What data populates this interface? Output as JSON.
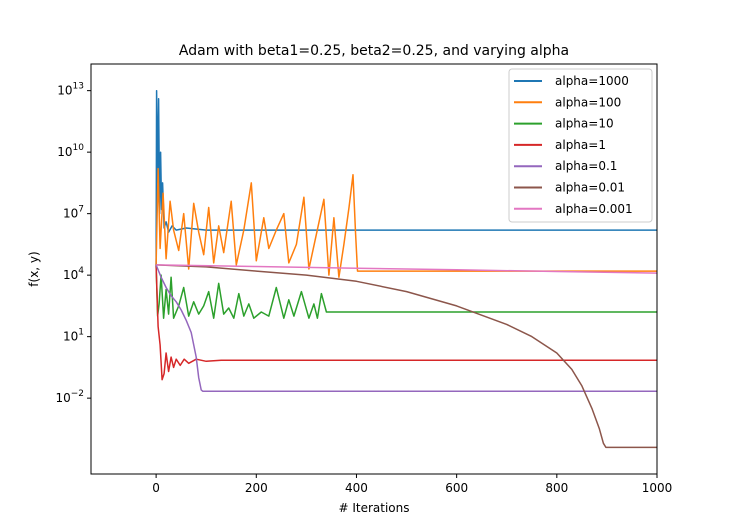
{
  "chart_data": {
    "type": "line",
    "title": "Adam with beta1=0.25, beta2=0.25, and varying alpha",
    "xlabel": "# Iterations",
    "ylabel": "f(x, y)",
    "xlim": [
      -130,
      1000
    ],
    "ylim_log10": [
      -5.7,
      14.3
    ],
    "yscale": "log",
    "grid": false,
    "legend_position": "top-right",
    "x_ticks": [
      {
        "value": 0,
        "label": "0"
      },
      {
        "value": 200,
        "label": "200"
      },
      {
        "value": 400,
        "label": "400"
      },
      {
        "value": 600,
        "label": "600"
      },
      {
        "value": 800,
        "label": "800"
      },
      {
        "value": 1000,
        "label": "1000"
      }
    ],
    "y_ticks": [
      {
        "exp": 13,
        "base": "10",
        "sup": "13"
      },
      {
        "exp": 10,
        "base": "10",
        "sup": "10"
      },
      {
        "exp": 7,
        "base": "10",
        "sup": "7"
      },
      {
        "exp": 4,
        "base": "10",
        "sup": "4"
      },
      {
        "exp": 1,
        "base": "10",
        "sup": "1"
      },
      {
        "exp": -2,
        "base": "10",
        "sup": "−2"
      }
    ],
    "series": [
      {
        "name": "alpha=1000",
        "color": "#1f77b4",
        "log10_points": [
          [
            0,
            4.5
          ],
          [
            1,
            13.0
          ],
          [
            3,
            8.5
          ],
          [
            5,
            12.6
          ],
          [
            7,
            7.0
          ],
          [
            9,
            10.0
          ],
          [
            11,
            7.2
          ],
          [
            13,
            8.5
          ],
          [
            16,
            6.3
          ],
          [
            20,
            6.6
          ],
          [
            25,
            6.1
          ],
          [
            32,
            6.4
          ],
          [
            40,
            6.2
          ],
          [
            60,
            6.3
          ],
          [
            100,
            6.2
          ],
          [
            150,
            6.2
          ],
          [
            1000,
            6.2
          ]
        ]
      },
      {
        "name": "alpha=100",
        "color": "#ff7f0e",
        "log10_points": [
          [
            0,
            4.5
          ],
          [
            4,
            9.2
          ],
          [
            8,
            5.3
          ],
          [
            14,
            8.0
          ],
          [
            20,
            4.8
          ],
          [
            28,
            7.6
          ],
          [
            35,
            6.2
          ],
          [
            45,
            5.2
          ],
          [
            55,
            7.0
          ],
          [
            65,
            4.3
          ],
          [
            75,
            7.5
          ],
          [
            85,
            6.1
          ],
          [
            95,
            5.0
          ],
          [
            105,
            7.3
          ],
          [
            115,
            4.6
          ],
          [
            125,
            6.4
          ],
          [
            135,
            5.1
          ],
          [
            150,
            7.6
          ],
          [
            160,
            4.5
          ],
          [
            175,
            6.2
          ],
          [
            190,
            8.5
          ],
          [
            200,
            4.7
          ],
          [
            215,
            6.8
          ],
          [
            225,
            5.3
          ],
          [
            240,
            6.2
          ],
          [
            255,
            7.0
          ],
          [
            265,
            4.6
          ],
          [
            280,
            5.5
          ],
          [
            295,
            7.8
          ],
          [
            305,
            4.3
          ],
          [
            320,
            6.0
          ],
          [
            335,
            7.7
          ],
          [
            345,
            4.0
          ],
          [
            355,
            6.8
          ],
          [
            365,
            3.9
          ],
          [
            375,
            5.5
          ],
          [
            385,
            7.3
          ],
          [
            393,
            8.9
          ],
          [
            398,
            6.1
          ],
          [
            402,
            4.2
          ],
          [
            1000,
            4.2
          ]
        ]
      },
      {
        "name": "alpha=10",
        "color": "#2ca02c",
        "log10_points": [
          [
            0,
            4.5
          ],
          [
            3,
            2.0
          ],
          [
            6,
            2.6
          ],
          [
            10,
            4.0
          ],
          [
            15,
            1.9
          ],
          [
            20,
            3.3
          ],
          [
            25,
            2.1
          ],
          [
            30,
            3.9
          ],
          [
            35,
            1.9
          ],
          [
            45,
            2.5
          ],
          [
            55,
            3.4
          ],
          [
            65,
            2.0
          ],
          [
            75,
            2.7
          ],
          [
            85,
            2.1
          ],
          [
            95,
            2.5
          ],
          [
            105,
            3.2
          ],
          [
            115,
            1.9
          ],
          [
            125,
            3.6
          ],
          [
            135,
            2.1
          ],
          [
            145,
            2.4
          ],
          [
            155,
            1.9
          ],
          [
            165,
            3.1
          ],
          [
            175,
            2.0
          ],
          [
            185,
            2.6
          ],
          [
            195,
            1.9
          ],
          [
            210,
            2.2
          ],
          [
            225,
            2.0
          ],
          [
            240,
            3.4
          ],
          [
            255,
            1.9
          ],
          [
            265,
            2.8
          ],
          [
            275,
            2.0
          ],
          [
            290,
            3.2
          ],
          [
            305,
            1.9
          ],
          [
            315,
            2.6
          ],
          [
            322,
            1.9
          ],
          [
            330,
            3.1
          ],
          [
            340,
            2.2
          ],
          [
            350,
            2.2
          ],
          [
            1000,
            2.2
          ]
        ]
      },
      {
        "name": "alpha=1",
        "color": "#d62728",
        "log10_points": [
          [
            0,
            4.5
          ],
          [
            4,
            1.5
          ],
          [
            8,
            0.6
          ],
          [
            12,
            -1.1
          ],
          [
            16,
            -0.8
          ],
          [
            20,
            0.2
          ],
          [
            25,
            -0.7
          ],
          [
            30,
            0.0
          ],
          [
            35,
            -0.5
          ],
          [
            40,
            -0.1
          ],
          [
            48,
            -0.4
          ],
          [
            56,
            -0.1
          ],
          [
            65,
            -0.3
          ],
          [
            80,
            -0.1
          ],
          [
            100,
            -0.2
          ],
          [
            130,
            -0.15
          ],
          [
            170,
            -0.15
          ],
          [
            1000,
            -0.15
          ]
        ]
      },
      {
        "name": "alpha=0.1",
        "color": "#9467bd",
        "log10_points": [
          [
            0,
            4.5
          ],
          [
            10,
            3.9
          ],
          [
            20,
            3.4
          ],
          [
            30,
            3.0
          ],
          [
            40,
            2.7
          ],
          [
            50,
            2.3
          ],
          [
            60,
            1.8
          ],
          [
            70,
            1.2
          ],
          [
            80,
            0.0
          ],
          [
            85,
            -1.0
          ],
          [
            90,
            -1.6
          ],
          [
            93,
            -1.66
          ],
          [
            1000,
            -1.66
          ]
        ]
      },
      {
        "name": "alpha=0.01",
        "color": "#8c564b",
        "log10_points": [
          [
            0,
            4.5
          ],
          [
            100,
            4.4
          ],
          [
            200,
            4.2
          ],
          [
            300,
            4.0
          ],
          [
            400,
            3.7
          ],
          [
            500,
            3.2
          ],
          [
            600,
            2.5
          ],
          [
            700,
            1.6
          ],
          [
            750,
            1.0
          ],
          [
            800,
            0.2
          ],
          [
            830,
            -0.6
          ],
          [
            850,
            -1.4
          ],
          [
            870,
            -2.5
          ],
          [
            885,
            -3.5
          ],
          [
            893,
            -4.2
          ],
          [
            898,
            -4.4
          ],
          [
            1000,
            -4.4
          ]
        ]
      },
      {
        "name": "alpha=0.001",
        "color": "#e377c2",
        "log10_points": [
          [
            0,
            4.5
          ],
          [
            200,
            4.42
          ],
          [
            400,
            4.34
          ],
          [
            600,
            4.26
          ],
          [
            800,
            4.18
          ],
          [
            1000,
            4.1
          ]
        ]
      }
    ]
  }
}
